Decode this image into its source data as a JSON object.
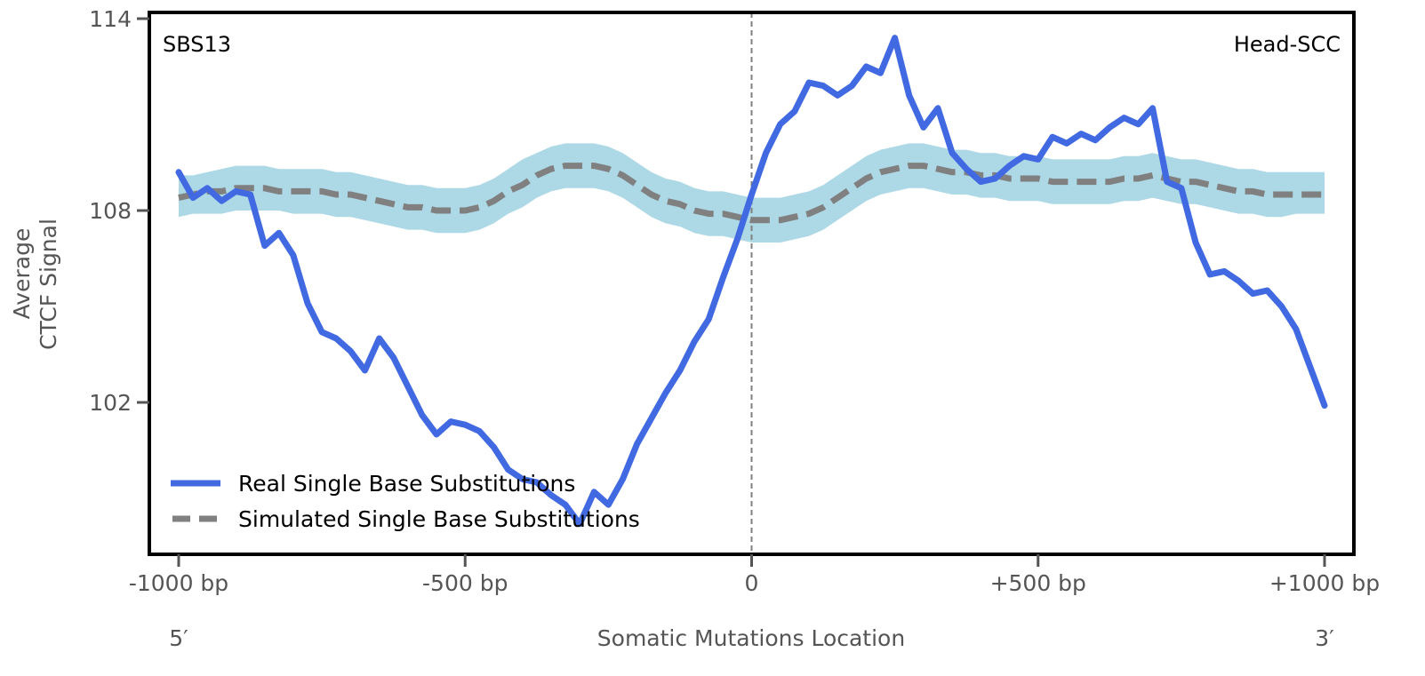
{
  "chart_data": {
    "type": "line",
    "title": "",
    "annotations": {
      "top_left": "SBS13",
      "top_right": "Head-SCC"
    },
    "xlabel": "Somatic Mutations Location",
    "ylabel_lines": [
      "Average",
      "CTCF Signal"
    ],
    "x_end_labels": {
      "left": "5′",
      "right": "3′"
    },
    "xlim": [
      -1000,
      1000
    ],
    "ylim": [
      97.3,
      114.2
    ],
    "x_ticks": [
      {
        "value": -1000,
        "label": "-1000 bp"
      },
      {
        "value": -500,
        "label": "-500 bp"
      },
      {
        "value": 0,
        "label": "0"
      },
      {
        "value": 500,
        "label": "+500 bp"
      },
      {
        "value": 1000,
        "label": "+1000 bp"
      }
    ],
    "y_ticks": [
      {
        "value": 114,
        "label": "114"
      },
      {
        "value": 108,
        "label": "108"
      },
      {
        "value": 102,
        "label": "102"
      }
    ],
    "grid": false,
    "center_line": {
      "x": 0,
      "style": "dashed",
      "color": "#808080"
    },
    "legend": {
      "position": "bottom-left",
      "entries": [
        {
          "label": "Real Single Base Substitutions",
          "style": "solid",
          "color": "#4169E1"
        },
        {
          "label": "Simulated Single Base Substitutions",
          "style": "dashed",
          "color": "#808080"
        }
      ]
    },
    "x": [
      -1000,
      -975,
      -950,
      -925,
      -900,
      -875,
      -850,
      -825,
      -800,
      -775,
      -750,
      -725,
      -700,
      -675,
      -650,
      -625,
      -600,
      -575,
      -550,
      -525,
      -500,
      -475,
      -450,
      -425,
      -400,
      -375,
      -350,
      -325,
      -300,
      -275,
      -250,
      -225,
      -200,
      -175,
      -150,
      -125,
      -100,
      -75,
      -50,
      -25,
      0,
      25,
      50,
      75,
      100,
      125,
      150,
      175,
      200,
      225,
      250,
      275,
      300,
      325,
      350,
      375,
      400,
      425,
      450,
      475,
      500,
      525,
      550,
      575,
      600,
      625,
      650,
      675,
      700,
      725,
      750,
      775,
      800,
      825,
      850,
      875,
      900,
      925,
      950,
      975,
      1000
    ],
    "series": [
      {
        "name": "Real Single Base Substitutions",
        "color": "#4169E1",
        "style": "solid",
        "values": [
          109.2,
          108.4,
          108.7,
          108.3,
          108.6,
          108.5,
          106.9,
          107.3,
          106.6,
          105.1,
          104.2,
          104.0,
          103.6,
          103.0,
          104.0,
          103.4,
          102.5,
          101.6,
          101.0,
          101.4,
          101.3,
          101.1,
          100.6,
          99.9,
          99.6,
          99.5,
          99.1,
          98.8,
          98.2,
          99.2,
          98.8,
          99.6,
          100.7,
          101.5,
          102.3,
          103.0,
          103.9,
          104.6,
          105.9,
          107.1,
          108.5,
          109.8,
          110.7,
          111.1,
          112.0,
          111.9,
          111.6,
          111.9,
          112.5,
          112.3,
          113.4,
          111.6,
          110.6,
          111.2,
          109.8,
          109.3,
          108.9,
          109.0,
          109.4,
          109.7,
          109.6,
          110.3,
          110.1,
          110.4,
          110.2,
          110.6,
          110.9,
          110.7,
          111.2,
          108.9,
          108.7,
          107.0,
          106.0,
          106.1,
          105.8,
          105.4,
          105.5,
          105.0,
          104.3,
          103.1,
          101.9
        ]
      },
      {
        "name": "Simulated Single Base Substitutions",
        "color": "#808080",
        "style": "dashed",
        "values": [
          108.4,
          108.5,
          108.6,
          108.6,
          108.7,
          108.7,
          108.7,
          108.6,
          108.6,
          108.6,
          108.6,
          108.5,
          108.5,
          108.4,
          108.3,
          108.2,
          108.1,
          108.1,
          108.0,
          108.0,
          108.0,
          108.1,
          108.3,
          108.6,
          108.8,
          109.1,
          109.3,
          109.4,
          109.4,
          109.4,
          109.3,
          109.1,
          108.8,
          108.5,
          108.3,
          108.2,
          108.0,
          107.9,
          107.9,
          107.8,
          107.7,
          107.7,
          107.7,
          107.8,
          107.9,
          108.1,
          108.4,
          108.7,
          109.0,
          109.2,
          109.3,
          109.4,
          109.4,
          109.3,
          109.2,
          109.2,
          109.1,
          109.1,
          109.0,
          109.0,
          109.0,
          108.9,
          108.9,
          108.9,
          108.9,
          108.9,
          109.0,
          109.0,
          109.1,
          109.0,
          108.9,
          108.9,
          108.8,
          108.7,
          108.6,
          108.6,
          108.5,
          108.5,
          108.5,
          108.5,
          108.5
        ]
      }
    ],
    "band": {
      "name": "Simulated confidence band",
      "color": "#ADD8E6",
      "lower": [
        107.8,
        107.9,
        107.9,
        107.9,
        108.0,
        108.0,
        108.0,
        108.0,
        107.9,
        107.9,
        107.9,
        107.8,
        107.8,
        107.7,
        107.6,
        107.5,
        107.4,
        107.4,
        107.3,
        107.3,
        107.3,
        107.4,
        107.6,
        107.9,
        108.1,
        108.4,
        108.6,
        108.7,
        108.7,
        108.7,
        108.6,
        108.4,
        108.1,
        107.8,
        107.6,
        107.5,
        107.3,
        107.2,
        107.2,
        107.1,
        107.0,
        107.0,
        107.0,
        107.1,
        107.2,
        107.4,
        107.7,
        108.0,
        108.3,
        108.5,
        108.6,
        108.7,
        108.7,
        108.6,
        108.5,
        108.5,
        108.4,
        108.4,
        108.3,
        108.3,
        108.3,
        108.2,
        108.2,
        108.2,
        108.2,
        108.2,
        108.3,
        108.3,
        108.4,
        108.3,
        108.2,
        108.2,
        108.1,
        108.0,
        107.9,
        107.9,
        107.8,
        107.8,
        107.9,
        107.9,
        107.9
      ],
      "upper": [
        109.1,
        109.1,
        109.2,
        109.3,
        109.4,
        109.4,
        109.4,
        109.3,
        109.3,
        109.3,
        109.3,
        109.2,
        109.2,
        109.1,
        109.0,
        108.9,
        108.8,
        108.8,
        108.7,
        108.7,
        108.7,
        108.8,
        109.0,
        109.3,
        109.6,
        109.8,
        110.0,
        110.1,
        110.1,
        110.1,
        110.0,
        109.8,
        109.5,
        109.2,
        109.0,
        108.9,
        108.7,
        108.6,
        108.6,
        108.5,
        108.4,
        108.4,
        108.4,
        108.5,
        108.6,
        108.8,
        109.1,
        109.4,
        109.7,
        109.9,
        110.0,
        110.1,
        110.1,
        110.0,
        109.9,
        109.9,
        109.8,
        109.8,
        109.7,
        109.7,
        109.7,
        109.6,
        109.6,
        109.6,
        109.6,
        109.6,
        109.7,
        109.7,
        109.8,
        109.7,
        109.6,
        109.6,
        109.5,
        109.4,
        109.3,
        109.3,
        109.2,
        109.2,
        109.2,
        109.2,
        109.2
      ]
    }
  }
}
